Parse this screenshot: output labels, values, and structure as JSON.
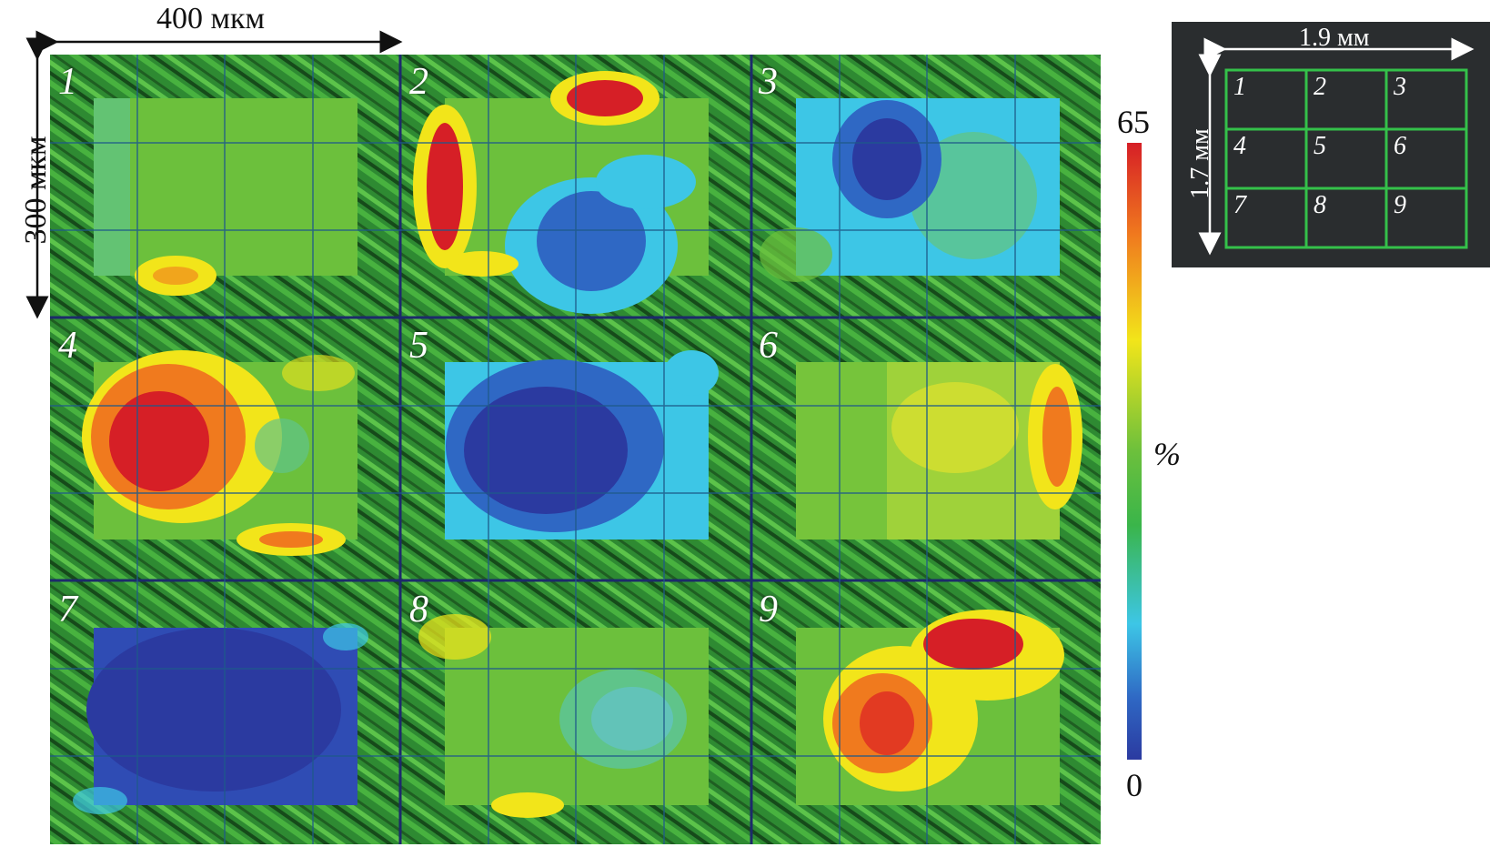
{
  "scale": {
    "width_label": "400 мкм",
    "height_label": "300 мкм"
  },
  "cells": [
    {
      "number": "1"
    },
    {
      "number": "2"
    },
    {
      "number": "3"
    },
    {
      "number": "4"
    },
    {
      "number": "5"
    },
    {
      "number": "6"
    },
    {
      "number": "7"
    },
    {
      "number": "8"
    },
    {
      "number": "9"
    }
  ],
  "colorbar": {
    "max_label": "65",
    "min_label": "0",
    "unit_label": "%",
    "colors": [
      "#d61f26",
      "#f07a1e",
      "#f2e51a",
      "#6cc03c",
      "#3ab54a",
      "#3dc6e6",
      "#2f68c4",
      "#2b3aa0"
    ]
  },
  "minimap": {
    "width_label": "1.9 мм",
    "height_label": "1.7 мм",
    "numbers": [
      "1",
      "2",
      "3",
      "4",
      "5",
      "6",
      "7",
      "8",
      "9"
    ],
    "line_color": "#34c14a"
  }
}
